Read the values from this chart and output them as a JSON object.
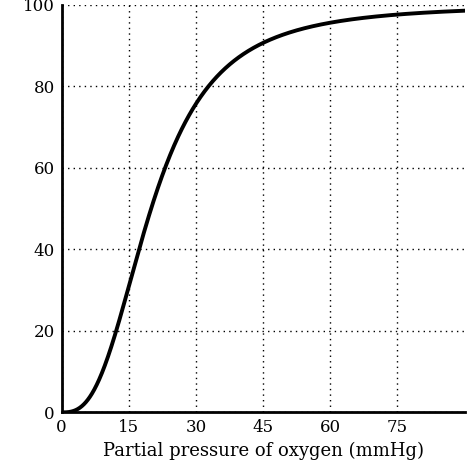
{
  "xlabel": "Partial pressure of oxygen (mmHg)",
  "xlim": [
    0,
    90
  ],
  "ylim": [
    0,
    100
  ],
  "xticks": [
    0,
    15,
    30,
    45,
    60,
    75
  ],
  "yticks": [
    0,
    20,
    40,
    60,
    80,
    100
  ],
  "line_color": "#000000",
  "line_width": 2.8,
  "background_color": "#ffffff",
  "grid_color": "#000000",
  "hill_n": 2.8,
  "hill_p50": 20.0
}
